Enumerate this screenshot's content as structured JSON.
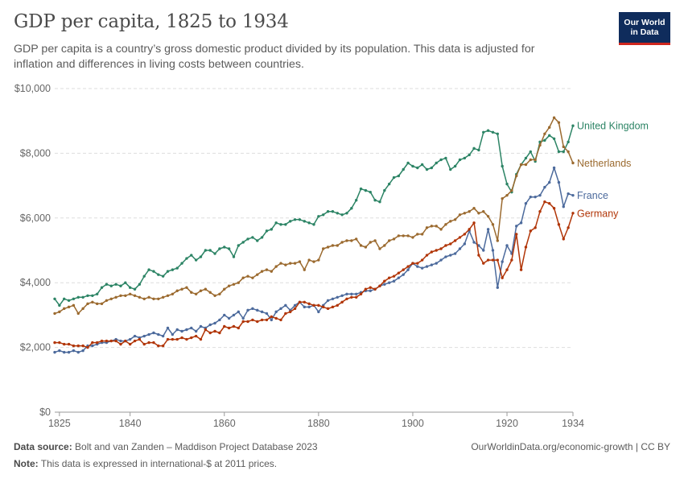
{
  "header": {
    "title": "GDP per capita, 1825 to 1934",
    "subtitle": "GDP per capita is a country’s gross domestic product divided by its population. This data is adjusted for inflation and differences in living costs between countries."
  },
  "logo": {
    "line1": "Our World",
    "line2": "in Data",
    "bg_color": "#0f2c5c",
    "accent_color": "#ce261e"
  },
  "footer": {
    "source_label": "Data source:",
    "source_text": "Bolt and van Zanden – Maddison Project Database 2023",
    "link": "OurWorldinData.org/economic-growth | CC BY",
    "note_label": "Note:",
    "note_text": "This data is expressed in international-$ at 2011 prices."
  },
  "chart_data": {
    "type": "line",
    "title": "GDP per capita, 1825 to 1934",
    "xlim": [
      1824,
      1934
    ],
    "ylim": [
      0,
      10000
    ],
    "xticks": [
      {
        "value": 1825,
        "label": "1825"
      },
      {
        "value": 1840,
        "label": "1840"
      },
      {
        "value": 1860,
        "label": "1860"
      },
      {
        "value": 1880,
        "label": "1880"
      },
      {
        "value": 1900,
        "label": "1900"
      },
      {
        "value": 1920,
        "label": "1920"
      },
      {
        "value": 1934,
        "label": "1934"
      }
    ],
    "yticks": [
      {
        "value": 0,
        "label": "$0"
      },
      {
        "value": 2000,
        "label": "$2,000"
      },
      {
        "value": 4000,
        "label": "$4,000"
      },
      {
        "value": 6000,
        "label": "$6,000"
      },
      {
        "value": 8000,
        "label": "$8,000"
      },
      {
        "value": 10000,
        "label": "$10,000"
      }
    ],
    "grid": "horizontal dashed",
    "legend": "inline labels at right end of lines",
    "series": [
      {
        "name": "United Kingdom",
        "color": "#2c8465",
        "x": [
          1824,
          1825,
          1826,
          1827,
          1828,
          1829,
          1830,
          1831,
          1832,
          1833,
          1834,
          1835,
          1836,
          1837,
          1838,
          1839,
          1840,
          1841,
          1842,
          1843,
          1844,
          1845,
          1846,
          1847,
          1848,
          1849,
          1850,
          1851,
          1852,
          1853,
          1854,
          1855,
          1856,
          1857,
          1858,
          1859,
          1860,
          1861,
          1862,
          1863,
          1864,
          1865,
          1866,
          1867,
          1868,
          1869,
          1870,
          1871,
          1872,
          1873,
          1874,
          1875,
          1876,
          1877,
          1878,
          1879,
          1880,
          1881,
          1882,
          1883,
          1884,
          1885,
          1886,
          1887,
          1888,
          1889,
          1890,
          1891,
          1892,
          1893,
          1894,
          1895,
          1896,
          1897,
          1898,
          1899,
          1900,
          1901,
          1902,
          1903,
          1904,
          1905,
          1906,
          1907,
          1908,
          1909,
          1910,
          1911,
          1912,
          1913,
          1914,
          1915,
          1916,
          1917,
          1918,
          1919,
          1920,
          1921,
          1922,
          1923,
          1924,
          1925,
          1926,
          1927,
          1928,
          1929,
          1930,
          1931,
          1932,
          1933,
          1934
        ],
        "y": [
          3500,
          3300,
          3500,
          3450,
          3500,
          3550,
          3550,
          3600,
          3600,
          3650,
          3850,
          3950,
          3900,
          3950,
          3900,
          4000,
          3850,
          3800,
          3950,
          4200,
          4400,
          4350,
          4250,
          4200,
          4350,
          4400,
          4450,
          4600,
          4750,
          4850,
          4700,
          4800,
          5000,
          5000,
          4900,
          5050,
          5100,
          5050,
          4800,
          5150,
          5250,
          5350,
          5400,
          5300,
          5400,
          5600,
          5650,
          5850,
          5800,
          5800,
          5900,
          5950,
          5950,
          5900,
          5850,
          5800,
          6050,
          6100,
          6200,
          6200,
          6150,
          6100,
          6150,
          6300,
          6550,
          6900,
          6850,
          6800,
          6550,
          6500,
          6850,
          7050,
          7250,
          7300,
          7500,
          7700,
          7600,
          7550,
          7650,
          7500,
          7550,
          7700,
          7800,
          7850,
          7500,
          7600,
          7800,
          7850,
          7950,
          8150,
          8100,
          8650,
          8700,
          8650,
          8600,
          7600,
          7050,
          6800,
          7350,
          7650,
          7850,
          8050,
          7750,
          8350,
          8400,
          8550,
          8450,
          8050,
          8050,
          8350,
          8850
        ]
      },
      {
        "name": "Netherlands",
        "color": "#9b6a2f",
        "x": [
          1824,
          1825,
          1826,
          1827,
          1828,
          1829,
          1830,
          1831,
          1832,
          1833,
          1834,
          1835,
          1836,
          1837,
          1838,
          1839,
          1840,
          1841,
          1842,
          1843,
          1844,
          1845,
          1846,
          1847,
          1848,
          1849,
          1850,
          1851,
          1852,
          1853,
          1854,
          1855,
          1856,
          1857,
          1858,
          1859,
          1860,
          1861,
          1862,
          1863,
          1864,
          1865,
          1866,
          1867,
          1868,
          1869,
          1870,
          1871,
          1872,
          1873,
          1874,
          1875,
          1876,
          1877,
          1878,
          1879,
          1880,
          1881,
          1882,
          1883,
          1884,
          1885,
          1886,
          1887,
          1888,
          1889,
          1890,
          1891,
          1892,
          1893,
          1894,
          1895,
          1896,
          1897,
          1898,
          1899,
          1900,
          1901,
          1902,
          1903,
          1904,
          1905,
          1906,
          1907,
          1908,
          1909,
          1910,
          1911,
          1912,
          1913,
          1914,
          1915,
          1916,
          1917,
          1918,
          1919,
          1920,
          1921,
          1922,
          1923,
          1924,
          1925,
          1926,
          1927,
          1928,
          1929,
          1930,
          1931,
          1932,
          1933,
          1934
        ],
        "y": [
          3050,
          3100,
          3200,
          3250,
          3300,
          3050,
          3200,
          3350,
          3400,
          3350,
          3350,
          3450,
          3500,
          3550,
          3600,
          3600,
          3650,
          3600,
          3550,
          3500,
          3550,
          3500,
          3500,
          3550,
          3600,
          3650,
          3750,
          3800,
          3850,
          3700,
          3650,
          3750,
          3800,
          3700,
          3600,
          3650,
          3800,
          3900,
          3950,
          4000,
          4150,
          4200,
          4150,
          4250,
          4350,
          4400,
          4350,
          4500,
          4600,
          4550,
          4600,
          4600,
          4650,
          4400,
          4700,
          4650,
          4700,
          5050,
          5100,
          5150,
          5150,
          5250,
          5300,
          5300,
          5350,
          5150,
          5100,
          5250,
          5300,
          5050,
          5150,
          5300,
          5350,
          5450,
          5450,
          5450,
          5400,
          5500,
          5500,
          5700,
          5750,
          5750,
          5650,
          5800,
          5900,
          5950,
          6100,
          6150,
          6200,
          6300,
          6150,
          6200,
          6050,
          5800,
          5300,
          6600,
          6700,
          6850,
          7300,
          7650,
          7650,
          7800,
          7800,
          8250,
          8600,
          8800,
          9100,
          8950,
          8200,
          8050,
          7700
        ]
      },
      {
        "name": "France",
        "color": "#4c6a9c",
        "x": [
          1824,
          1825,
          1826,
          1827,
          1828,
          1829,
          1830,
          1831,
          1832,
          1833,
          1834,
          1835,
          1836,
          1837,
          1838,
          1839,
          1840,
          1841,
          1842,
          1843,
          1844,
          1845,
          1846,
          1847,
          1848,
          1849,
          1850,
          1851,
          1852,
          1853,
          1854,
          1855,
          1856,
          1857,
          1858,
          1859,
          1860,
          1861,
          1862,
          1863,
          1864,
          1865,
          1866,
          1867,
          1868,
          1869,
          1870,
          1871,
          1872,
          1873,
          1874,
          1875,
          1876,
          1877,
          1878,
          1879,
          1880,
          1881,
          1882,
          1883,
          1884,
          1885,
          1886,
          1887,
          1888,
          1889,
          1890,
          1891,
          1892,
          1893,
          1894,
          1895,
          1896,
          1897,
          1898,
          1899,
          1900,
          1901,
          1902,
          1903,
          1904,
          1905,
          1906,
          1907,
          1908,
          1909,
          1910,
          1911,
          1912,
          1913,
          1914,
          1915,
          1916,
          1917,
          1918,
          1919,
          1920,
          1921,
          1922,
          1923,
          1924,
          1925,
          1926,
          1927,
          1928,
          1929,
          1930,
          1931,
          1932,
          1933,
          1934
        ],
        "y": [
          1850,
          1900,
          1850,
          1850,
          1900,
          1850,
          1900,
          2050,
          2050,
          2100,
          2150,
          2150,
          2200,
          2250,
          2200,
          2200,
          2250,
          2350,
          2300,
          2350,
          2400,
          2450,
          2400,
          2350,
          2600,
          2400,
          2550,
          2500,
          2550,
          2600,
          2500,
          2650,
          2600,
          2700,
          2750,
          2850,
          3000,
          2900,
          3000,
          3100,
          2900,
          3150,
          3200,
          3150,
          3100,
          3050,
          2850,
          3100,
          3200,
          3300,
          3150,
          3300,
          3400,
          3250,
          3250,
          3300,
          3100,
          3300,
          3450,
          3500,
          3550,
          3600,
          3650,
          3650,
          3650,
          3700,
          3750,
          3750,
          3800,
          3900,
          3950,
          4000,
          4050,
          4150,
          4250,
          4400,
          4600,
          4500,
          4450,
          4500,
          4550,
          4600,
          4700,
          4800,
          4850,
          4900,
          5050,
          5200,
          5600,
          5250,
          5150,
          5000,
          5650,
          5000,
          3850,
          4650,
          5150,
          4900,
          5750,
          5850,
          6450,
          6650,
          6650,
          6700,
          6950,
          7100,
          7550,
          7100,
          6350,
          6750,
          6700
        ]
      },
      {
        "name": "Germany",
        "color": "#b13507",
        "x": [
          1824,
          1825,
          1826,
          1827,
          1828,
          1829,
          1830,
          1831,
          1832,
          1833,
          1834,
          1835,
          1836,
          1837,
          1838,
          1839,
          1840,
          1841,
          1842,
          1843,
          1844,
          1845,
          1846,
          1847,
          1848,
          1849,
          1850,
          1851,
          1852,
          1853,
          1854,
          1855,
          1856,
          1857,
          1858,
          1859,
          1860,
          1861,
          1862,
          1863,
          1864,
          1865,
          1866,
          1867,
          1868,
          1869,
          1870,
          1871,
          1872,
          1873,
          1874,
          1875,
          1876,
          1877,
          1878,
          1879,
          1880,
          1881,
          1882,
          1883,
          1884,
          1885,
          1886,
          1887,
          1888,
          1889,
          1890,
          1891,
          1892,
          1893,
          1894,
          1895,
          1896,
          1897,
          1898,
          1899,
          1900,
          1901,
          1902,
          1903,
          1904,
          1905,
          1906,
          1907,
          1908,
          1909,
          1910,
          1911,
          1912,
          1913,
          1914,
          1915,
          1916,
          1917,
          1918,
          1919,
          1920,
          1921,
          1922,
          1923,
          1924,
          1925,
          1926,
          1927,
          1928,
          1929,
          1930,
          1931,
          1932,
          1933,
          1934
        ],
        "y": [
          2150,
          2150,
          2100,
          2100,
          2050,
          2050,
          2050,
          2000,
          2150,
          2150,
          2200,
          2200,
          2200,
          2200,
          2100,
          2200,
          2100,
          2200,
          2250,
          2100,
          2150,
          2150,
          2050,
          2050,
          2250,
          2250,
          2250,
          2300,
          2250,
          2300,
          2350,
          2250,
          2550,
          2450,
          2500,
          2450,
          2650,
          2600,
          2650,
          2600,
          2800,
          2800,
          2850,
          2800,
          2850,
          2850,
          2950,
          2900,
          2850,
          3050,
          3100,
          3200,
          3400,
          3400,
          3350,
          3300,
          3300,
          3250,
          3200,
          3250,
          3300,
          3400,
          3500,
          3550,
          3550,
          3650,
          3800,
          3850,
          3800,
          3900,
          4050,
          4150,
          4200,
          4300,
          4400,
          4500,
          4600,
          4600,
          4700,
          4850,
          4950,
          5000,
          5050,
          5150,
          5200,
          5300,
          5400,
          5500,
          5650,
          5850,
          4850,
          4600,
          4700,
          4700,
          4700,
          4150,
          4400,
          4700,
          5500,
          4400,
          5100,
          5600,
          5700,
          6200,
          6500,
          6450,
          6300,
          5800,
          5350,
          5700,
          6150
        ]
      }
    ]
  }
}
